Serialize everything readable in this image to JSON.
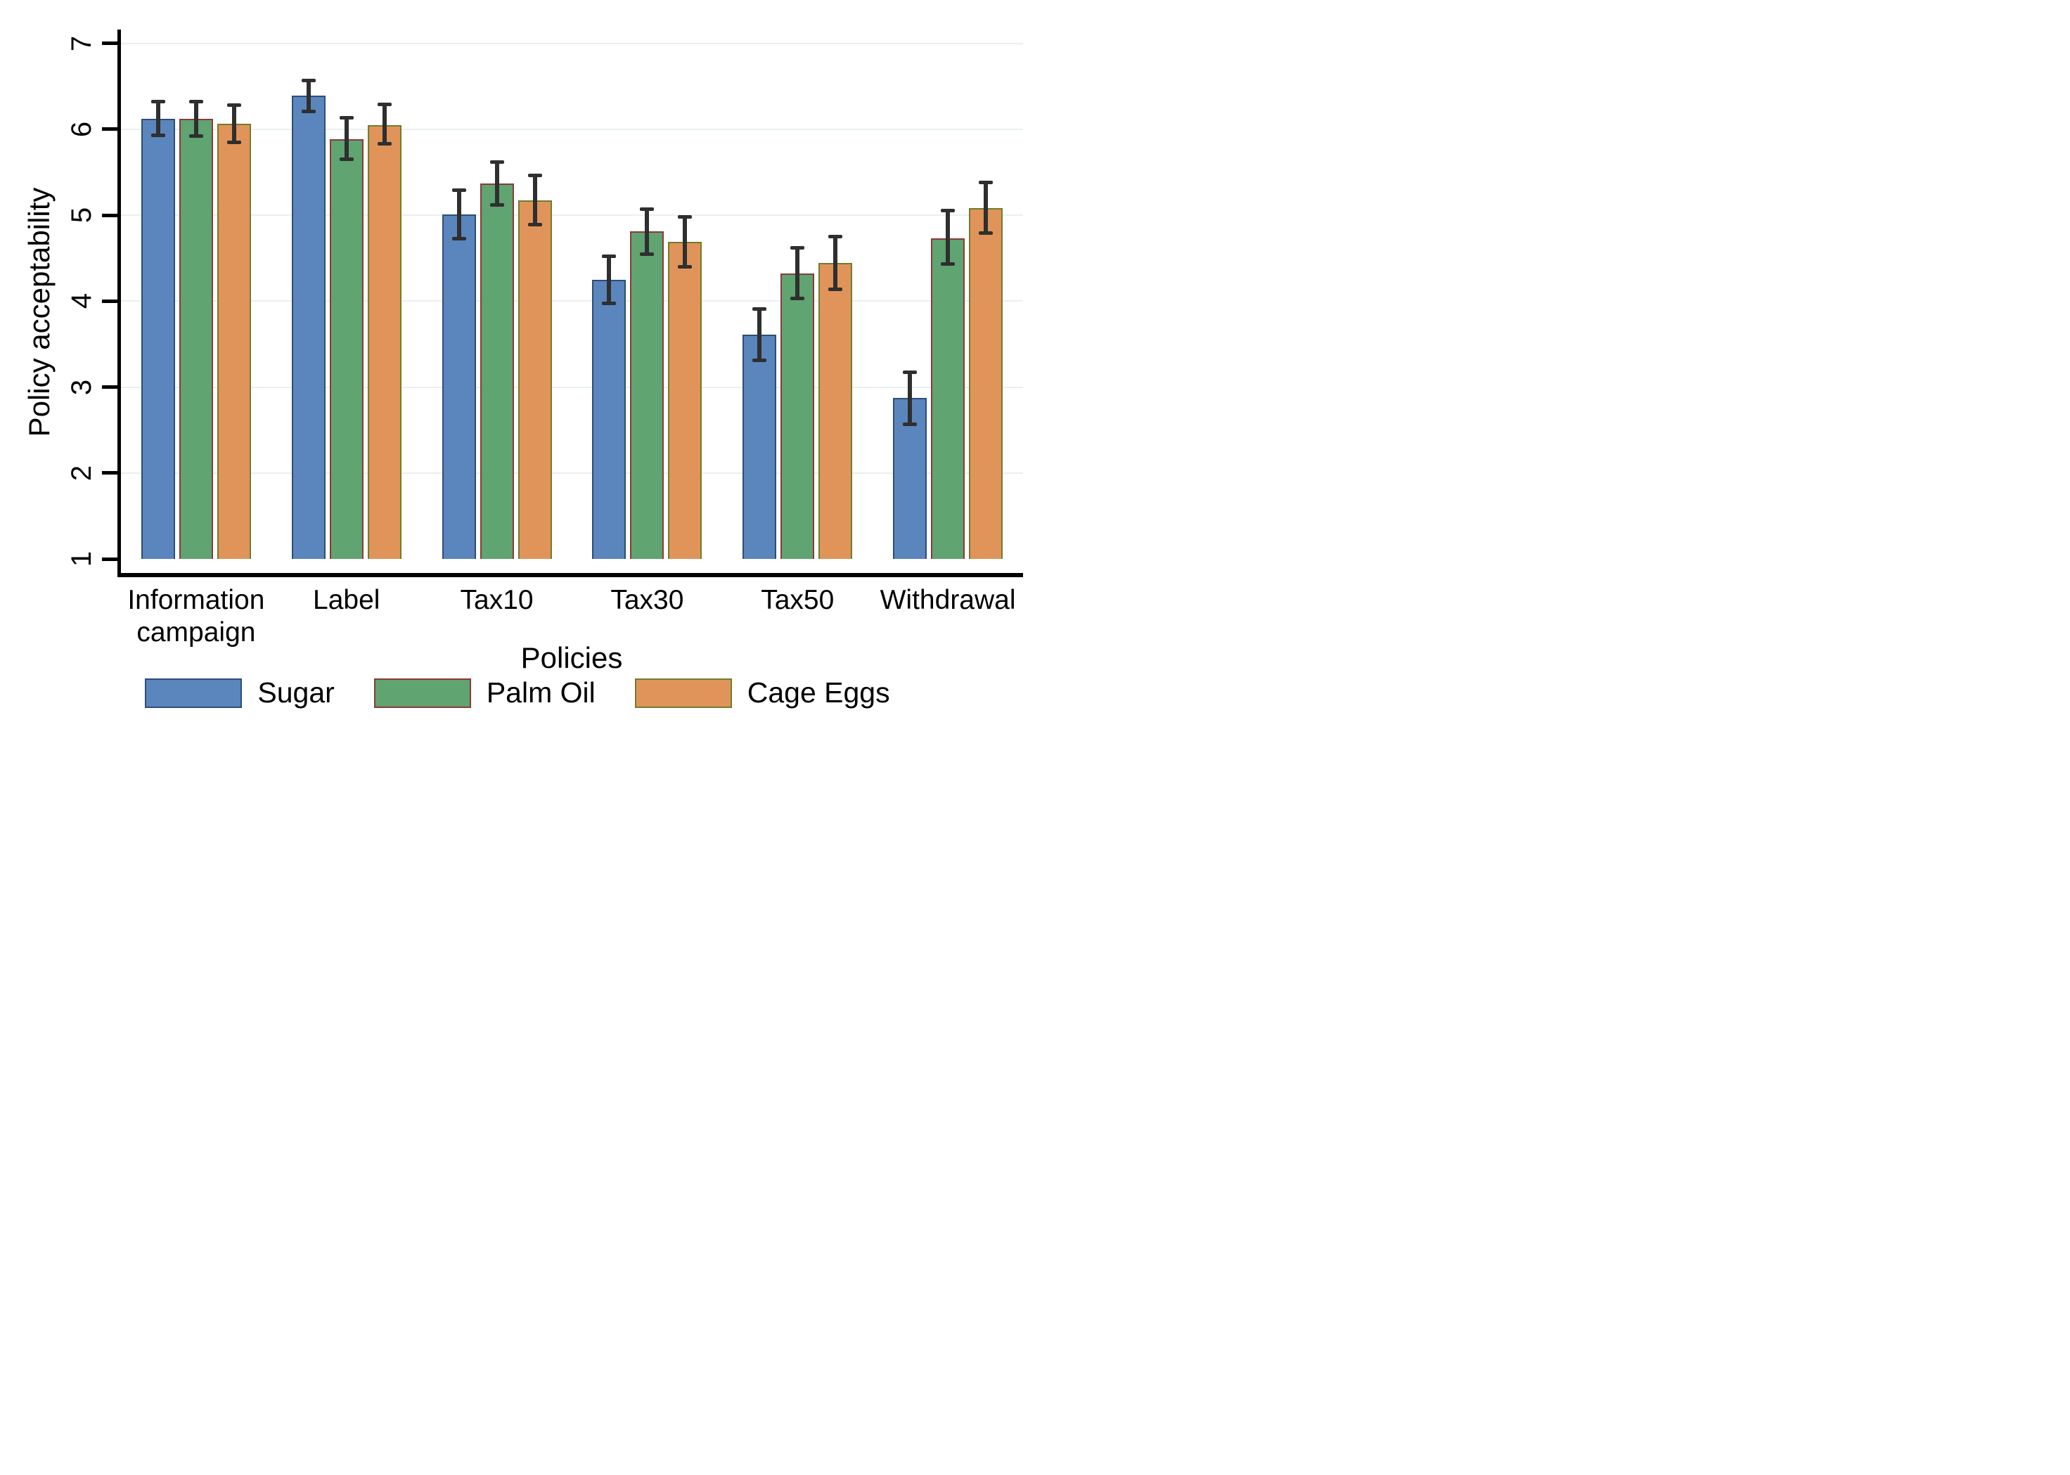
{
  "y_axis": {
    "title": "Policy acceptability",
    "tick_labels": [
      "1",
      "2",
      "3",
      "4",
      "5",
      "6",
      "7"
    ]
  },
  "x_axis": {
    "title": "Policies",
    "category_labels": [
      "Information campaign",
      "Label",
      "Tax10",
      "Tax30",
      "Tax50",
      "Withdrawal"
    ]
  },
  "legend": {
    "items": [
      {
        "label": "Sugar",
        "fill": "#5b85bd",
        "stroke": "#2b4e78"
      },
      {
        "label": "Palm Oil",
        "fill": "#5fa471",
        "stroke": "#8b3a3a"
      },
      {
        "label": "Cage Eggs",
        "fill": "#e0945a",
        "stroke": "#6f7d2e"
      }
    ]
  },
  "colors": {
    "grid": "#e9f0f2",
    "axis": "#000000",
    "error_bar": "#2f2f2f",
    "background": "#ffffff"
  },
  "chart_data": {
    "type": "bar",
    "title": "",
    "xlabel": "Policies",
    "ylabel": "Policy acceptability",
    "categories": [
      "Information campaign",
      "Label",
      "Tax10",
      "Tax30",
      "Tax50",
      "Withdrawal"
    ],
    "series": [
      {
        "name": "Sugar",
        "fill": "#5b85bd",
        "stroke": "#2b4e78",
        "values": [
          6.12,
          6.39,
          5.01,
          4.25,
          3.61,
          2.87
        ],
        "ci_low": [
          5.93,
          6.21,
          4.73,
          3.97,
          3.31,
          2.57
        ],
        "ci_high": [
          6.32,
          6.57,
          5.29,
          4.52,
          3.91,
          3.17
        ]
      },
      {
        "name": "Palm Oil",
        "fill": "#5fa471",
        "stroke": "#8b3a3a",
        "values": [
          6.12,
          5.88,
          5.37,
          4.81,
          4.32,
          4.73
        ],
        "ci_low": [
          5.92,
          5.65,
          5.12,
          4.55,
          4.03,
          4.43
        ],
        "ci_high": [
          6.32,
          6.13,
          5.62,
          5.07,
          4.62,
          5.05
        ]
      },
      {
        "name": "Cage Eggs",
        "fill": "#e0945a",
        "stroke": "#6f7d2e",
        "values": [
          6.06,
          6.05,
          5.17,
          4.69,
          4.44,
          5.08
        ],
        "ci_low": [
          5.85,
          5.83,
          4.89,
          4.4,
          4.14,
          4.79
        ],
        "ci_high": [
          6.28,
          6.29,
          5.46,
          4.98,
          4.75,
          5.38
        ]
      }
    ],
    "ylim": [
      1,
      7
    ],
    "yticks": [
      1,
      2,
      3,
      4,
      5,
      6,
      7
    ],
    "grid": "horizontal",
    "error_bars": true,
    "legend_position": "bottom"
  }
}
